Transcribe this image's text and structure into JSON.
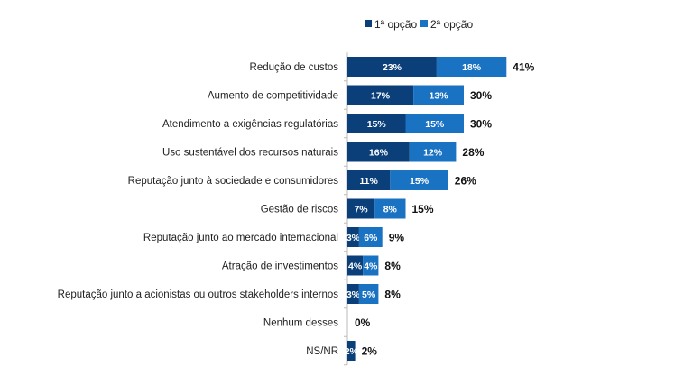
{
  "chart_data": {
    "type": "bar",
    "orientation": "horizontal",
    "stacked": true,
    "legend_position": "top",
    "grid": false,
    "categories": [
      "Redução de custos",
      "Aumento de competitividade",
      "Atendimento a exigências regulatórias",
      "Uso sustentável dos recursos naturais",
      "Reputação junto à sociedade e consumidores",
      "Gestão de riscos",
      "Reputação junto ao mercado internacional",
      "Atração de investimentos",
      "Reputação junto a acionistas ou outros stakeholders internos",
      "Nenhum desses",
      "NS/NR"
    ],
    "series": [
      {
        "name": "1ª opção",
        "color": "#0b3f7a",
        "values": [
          23,
          17,
          15,
          16,
          11,
          7,
          3,
          4,
          3,
          0,
          2
        ]
      },
      {
        "name": "2ª opção",
        "color": "#1a72c3",
        "values": [
          18,
          13,
          15,
          12,
          15,
          8,
          6,
          4,
          5,
          0,
          0
        ]
      }
    ],
    "totals": [
      41,
      30,
      30,
      28,
      26,
      15,
      9,
      8,
      8,
      0,
      2
    ],
    "value_suffix": "%"
  }
}
